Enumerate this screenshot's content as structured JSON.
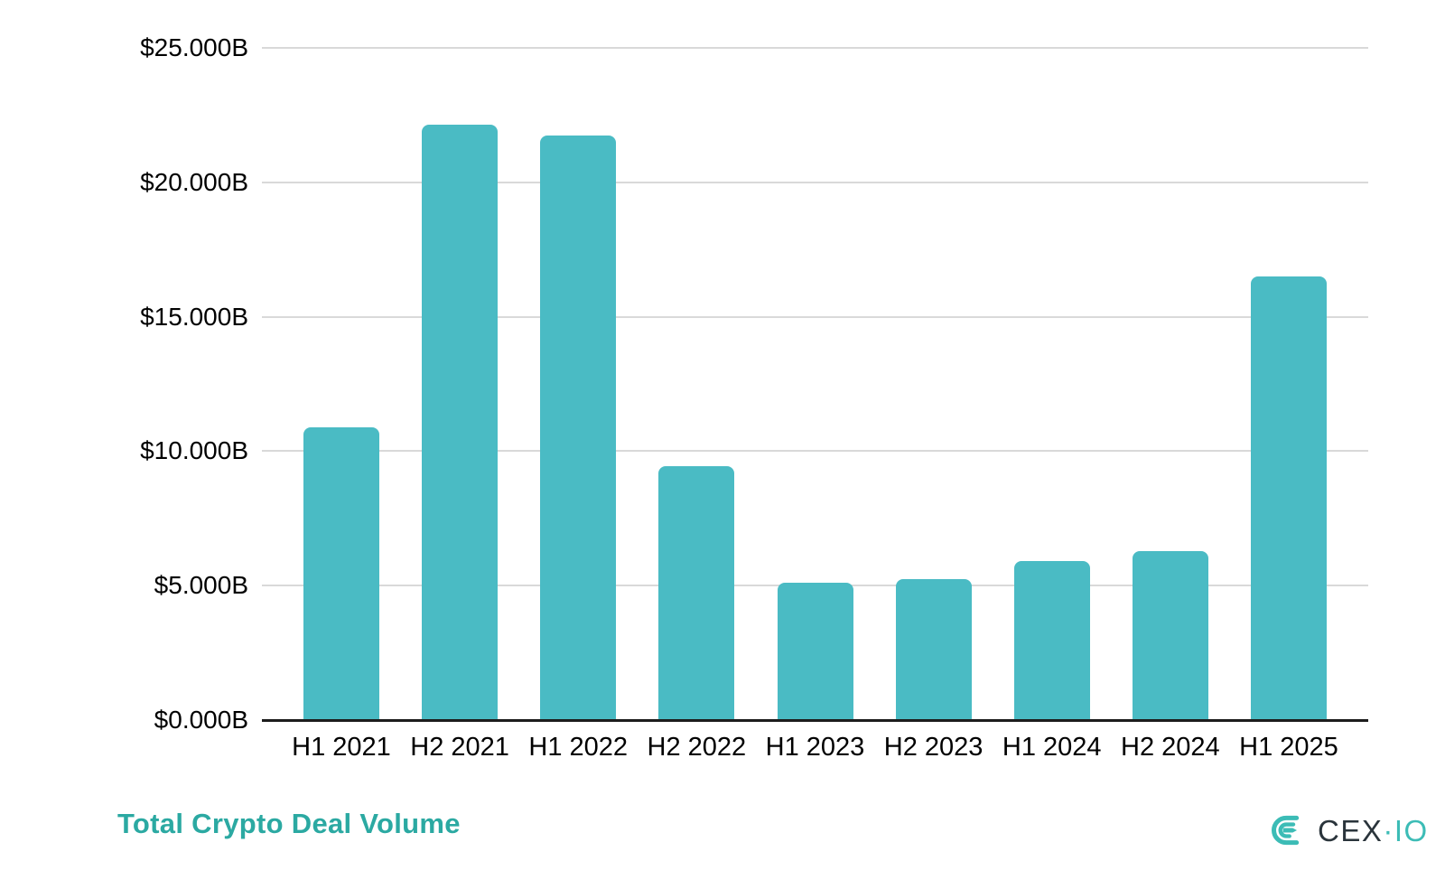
{
  "chart_data": {
    "type": "bar",
    "title": "Total Crypto Deal Volume",
    "categories": [
      "H1 2021",
      "H2 2021",
      "H1 2022",
      "H2 2022",
      "H1 2023",
      "H2 2023",
      "H1 2024",
      "H2 2024",
      "H1 2025"
    ],
    "values": [
      10.9,
      22.15,
      21.75,
      9.45,
      5.1,
      5.25,
      5.9,
      6.3,
      16.5
    ],
    "value_unit": "USD billions",
    "xlabel": "",
    "ylabel": "",
    "ylim": [
      0,
      25
    ],
    "ytick_values": [
      0,
      5,
      10,
      15,
      20,
      25
    ],
    "ytick_labels": [
      "$0.000B",
      "$5.000B",
      "$10.000B",
      "$15.000B",
      "$20.000B",
      "$25.000B"
    ],
    "grid": true,
    "legend": false
  },
  "branding": {
    "logo_text_dark": "CEX",
    "logo_text_teal": "·IO"
  },
  "colors": {
    "bar": "#4ABBC4",
    "gridline": "#D9D9D9",
    "axis_line": "#1C1C1C",
    "tick_text": "#000000",
    "title_text": "#2BA9A2",
    "logo_dark": "#2A343B",
    "logo_teal": "#3CBCB6",
    "background": "#FFFFFF"
  }
}
